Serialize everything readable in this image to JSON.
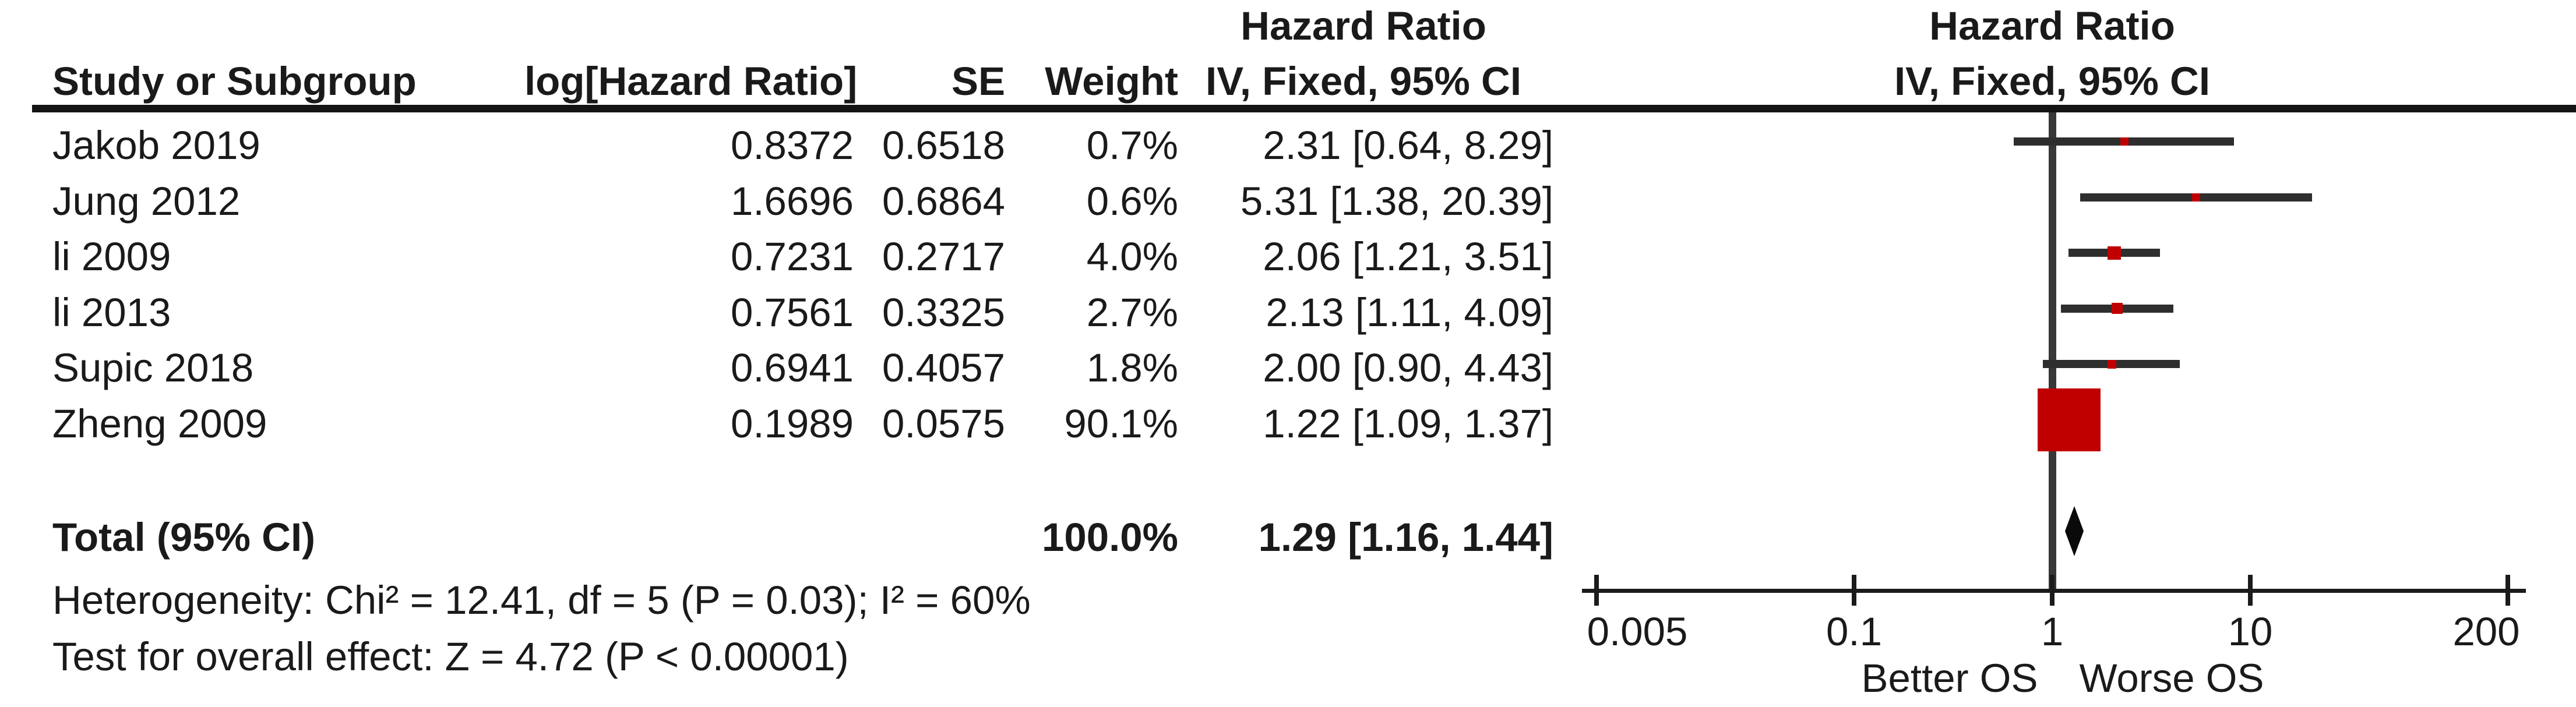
{
  "colors": {
    "marker_red": "#c00000",
    "ci_line": "#2e2e2e",
    "null_line_gray": "#383838",
    "text_black": "#1a1a1a",
    "diamond_black": "#0a0a0a"
  },
  "chart_data": {
    "type": "scatter",
    "subtype": "forest-plot-fixed-effect",
    "effect_measure": "Hazard Ratio",
    "columns": {
      "study": "Study or Subgroup",
      "log_hr": "log[Hazard Ratio]",
      "se": "SE",
      "weight": "Weight",
      "ci_header_line1": "Hazard Ratio",
      "ci_header_line2": "IV, Fixed, 95% CI"
    },
    "plot_header": {
      "line1": "Hazard Ratio",
      "line2": "IV, Fixed, 95% CI"
    },
    "studies": [
      {
        "study": "Jakob 2019",
        "log_hr": "0.8372",
        "se": "0.6518",
        "weight": "0.7%",
        "weight_pct": 0.7,
        "ci_text": "2.31 [0.64, 8.29]",
        "hr": 2.31,
        "lo": 0.64,
        "hi": 8.29
      },
      {
        "study": "Jung 2012",
        "log_hr": "1.6696",
        "se": "0.6864",
        "weight": "0.6%",
        "weight_pct": 0.6,
        "ci_text": "5.31 [1.38, 20.39]",
        "hr": 5.31,
        "lo": 1.38,
        "hi": 20.39
      },
      {
        "study": "li 2009",
        "log_hr": "0.7231",
        "se": "0.2717",
        "weight": "4.0%",
        "weight_pct": 4.0,
        "ci_text": "2.06 [1.21, 3.51]",
        "hr": 2.06,
        "lo": 1.21,
        "hi": 3.51
      },
      {
        "study": "li 2013",
        "log_hr": "0.7561",
        "se": "0.3325",
        "weight": "2.7%",
        "weight_pct": 2.7,
        "ci_text": "2.13 [1.11, 4.09]",
        "hr": 2.13,
        "lo": 1.11,
        "hi": 4.09
      },
      {
        "study": "Supic 2018",
        "log_hr": "0.6941",
        "se": "0.4057",
        "weight": "1.8%",
        "weight_pct": 1.8,
        "ci_text": "2.00 [0.90, 4.43]",
        "hr": 2.0,
        "lo": 0.9,
        "hi": 4.43
      },
      {
        "study": "Zheng 2009",
        "log_hr": "0.1989",
        "se": "0.0575",
        "weight": "90.1%",
        "weight_pct": 90.1,
        "ci_text": "1.22 [1.09, 1.37]",
        "hr": 1.22,
        "lo": 1.09,
        "hi": 1.37
      }
    ],
    "total": {
      "label": "Total (95% CI)",
      "weight": "100.0%",
      "weight_pct": 100.0,
      "ci_text": "1.29 [1.16, 1.44]",
      "hr": 1.29,
      "lo": 1.16,
      "hi": 1.44
    },
    "footnotes": {
      "heterogeneity": "Heterogeneity: Chi² = 12.41, df = 5 (P = 0.03); I² = 60%",
      "overall_effect": "Test for overall effect: Z = 4.72 (P < 0.00001)"
    },
    "x_axis": {
      "scale": "log10",
      "ticks": [
        0.005,
        0.1,
        1,
        10,
        200
      ],
      "tick_labels": [
        "0.005",
        "0.1",
        "1",
        "10",
        "200"
      ],
      "null_value": 1,
      "left_annotation": "Better OS",
      "right_annotation": "Worse OS",
      "xlim": [
        0.005,
        200
      ]
    }
  }
}
